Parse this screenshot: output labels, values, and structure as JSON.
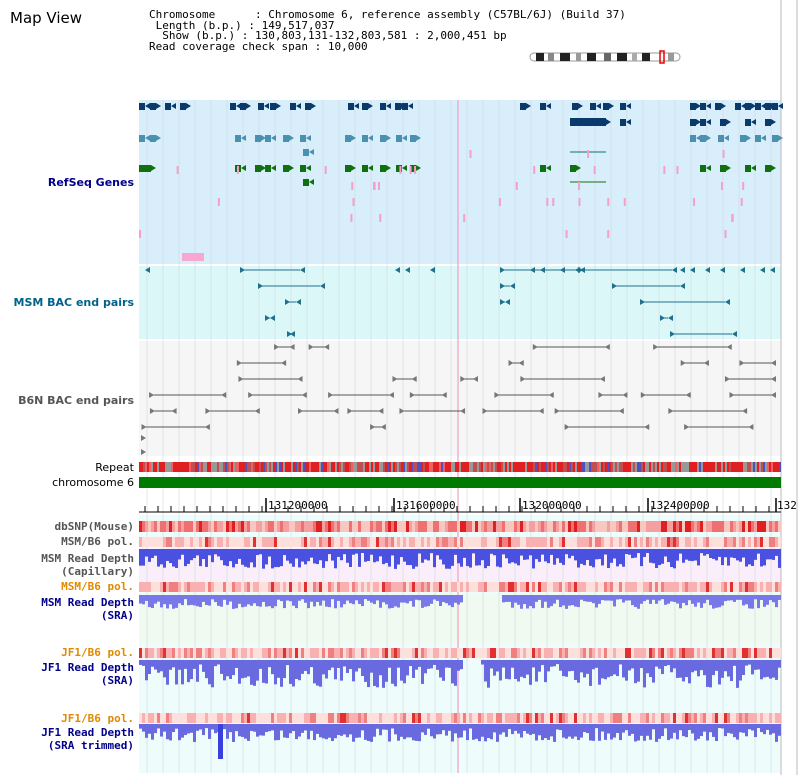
{
  "page": {
    "title": "Map View"
  },
  "info": {
    "chromosome_label": "Chromosome",
    "chromosome_value": "Chromosome 6, reference assembly (C57BL/6J) (Build 37)",
    "length_label": "Length (b.p.)",
    "length_value": "149,517,037",
    "show_label": "Show (b.p.)",
    "show_value": "130,803,131-132,803,581 : 2,000,451 bp",
    "coverage_label": "Read coverage check span",
    "coverage_value": "10,000"
  },
  "tracks": {
    "refseq": "RefSeq Genes",
    "msm_bac": "MSM BAC end pairs",
    "b6n_bac": "B6N BAC end pairs",
    "repeat": "Repeat",
    "chromosome": "chromosome 6",
    "dbsnp": "dbSNP(Mouse)",
    "msm_b6_pol_1": "MSM/B6 pol.",
    "msm_depth_cap_1": "MSM Read Depth",
    "msm_depth_cap_2": "(Capillary)",
    "msm_b6_pol_2": "MSM/B6 pol.",
    "msm_depth_sra_1": "MSM Read Depth",
    "msm_depth_sra_2": "(SRA)",
    "jf1_b6_pol_1": "JF1/B6 pol.",
    "jf1_depth_sra_1": "JF1 Read Depth",
    "jf1_depth_sra_2": "(SRA)",
    "jf1_b6_pol_2": "JF1/B6 pol.",
    "jf1_depth_trim_1": "JF1 Read Depth",
    "jf1_depth_trim_2": "(SRA trimmed)"
  },
  "ruler": {
    "ticks": [
      "131200000",
      "131600000",
      "132000000",
      "132400000",
      "132"
    ]
  },
  "colors": {
    "refseq_bg": "#d8eefa",
    "msm_bac_bg": "#dcf7f7",
    "b6n_bac_bg": "#f4f4f4",
    "chromosome_green": "#007a00",
    "label_blue": "#00008b",
    "label_orange": "#e08a00",
    "label_gray": "#555555"
  }
}
